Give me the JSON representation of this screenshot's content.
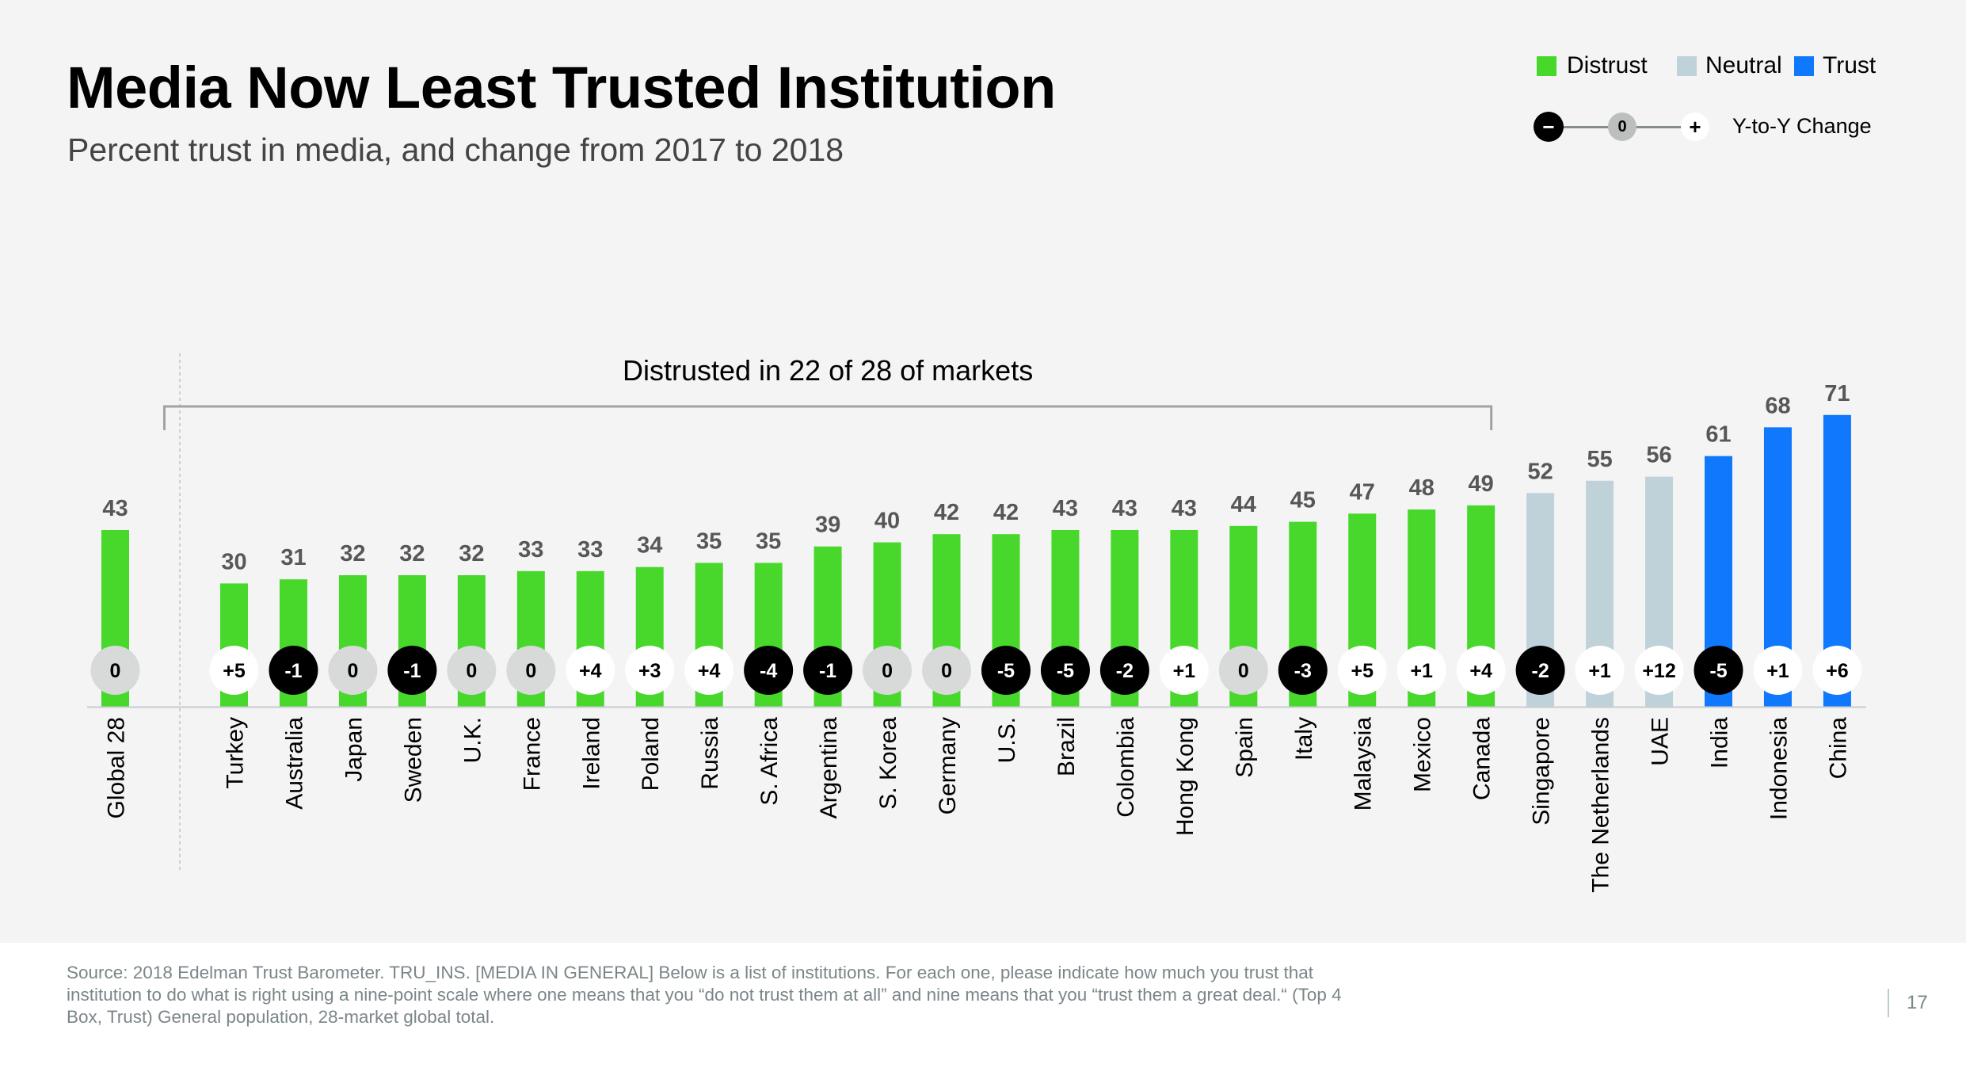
{
  "header": {
    "title": "Media Now Least Trusted Institution",
    "subtitle": "Percent trust in media, and change from 2017 to 2018"
  },
  "legend": {
    "items": [
      {
        "label": "Distrust",
        "color": "#47d82b"
      },
      {
        "label": "Neutral",
        "color": "#bfd1d9"
      },
      {
        "label": "Trust",
        "color": "#0f78fc"
      }
    ],
    "change_scale": {
      "negative_symbol": "−",
      "zero_symbol": "0",
      "positive_symbol": "+",
      "label": "Y-to-Y Change"
    }
  },
  "colors": {
    "distrust": "#47d82b",
    "neutral": "#bfd1d9",
    "trust": "#0f78fc",
    "change_negative": "#000000",
    "change_zero": "#d8d9d9",
    "change_positive": "#ffffff",
    "value_label": "#575757"
  },
  "chart_data": {
    "type": "bar",
    "title": "Media Now Least Trusted Institution",
    "subtitle": "Percent trust in media, and change from 2017 to 2018",
    "xlabel": "",
    "ylabel": "Percent trust in media",
    "ylim": [
      0,
      75
    ],
    "grid": false,
    "legend_position": "top-right",
    "global": {
      "category": "Global 28",
      "value": 43,
      "change": "0",
      "group": "distrust"
    },
    "categories": [
      "Turkey",
      "Australia",
      "Japan",
      "Sweden",
      "U.K.",
      "France",
      "Ireland",
      "Poland",
      "Russia",
      "S. Africa",
      "Argentina",
      "S. Korea",
      "Germany",
      "U.S.",
      "Brazil",
      "Colombia",
      "Hong Kong",
      "Spain",
      "Italy",
      "Malaysia",
      "Mexico",
      "Canada",
      "Singapore",
      "The Netherlands",
      "UAE",
      "India",
      "Indonesia",
      "China"
    ],
    "values": [
      30,
      31,
      32,
      32,
      32,
      33,
      33,
      34,
      35,
      35,
      39,
      40,
      42,
      42,
      43,
      43,
      43,
      44,
      45,
      47,
      48,
      49,
      52,
      55,
      56,
      61,
      68,
      71
    ],
    "changes": [
      "+5",
      "-1",
      "0",
      "-1",
      "0",
      "0",
      "+4",
      "+3",
      "+4",
      "-4",
      "-1",
      "0",
      "0",
      "-5",
      "-5",
      "-2",
      "+1",
      "0",
      "-3",
      "+5",
      "+1",
      "+4",
      "-2",
      "+1",
      "+12",
      "-5",
      "+1",
      "+6"
    ],
    "groups": [
      "distrust",
      "distrust",
      "distrust",
      "distrust",
      "distrust",
      "distrust",
      "distrust",
      "distrust",
      "distrust",
      "distrust",
      "distrust",
      "distrust",
      "distrust",
      "distrust",
      "distrust",
      "distrust",
      "distrust",
      "distrust",
      "distrust",
      "distrust",
      "distrust",
      "distrust",
      "neutral",
      "neutral",
      "neutral",
      "trust",
      "trust",
      "trust"
    ],
    "annotation": {
      "text": "Distrusted in 22 of 28 of markets",
      "from": "Turkey",
      "to": "Canada"
    }
  },
  "footer": {
    "source": "Source: 2018 Edelman Trust Barometer. TRU_INS. [MEDIA IN GENERAL] Below is a list of institutions. For each one, please indicate how much you trust that institution to do what is right using a nine-point scale where one means that you “do not trust them at all” and nine means that you “trust them a great deal.“ (Top 4 Box, Trust) General population, 28-market global total.",
    "page_number": "17"
  }
}
